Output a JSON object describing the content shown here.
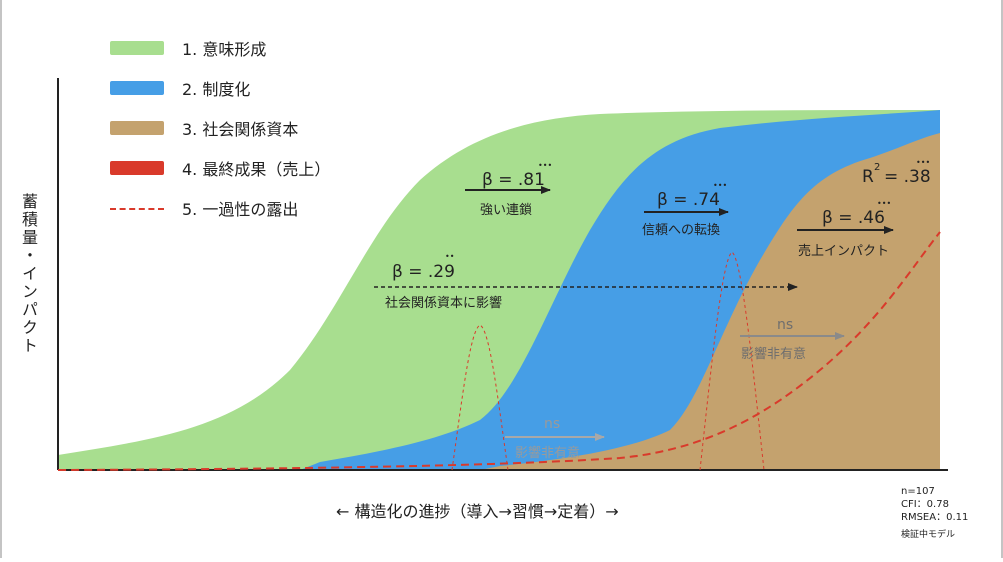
{
  "legend": {
    "items": [
      {
        "label": "1. 意味形成",
        "color": "#a8de8f",
        "style": "fill"
      },
      {
        "label": "2. 制度化",
        "color": "#469ee6",
        "style": "fill"
      },
      {
        "label": "3. 社会関係資本",
        "color": "#c4a26e",
        "style": "fill"
      },
      {
        "label": "4. 最終成果（売上）",
        "color": "#d93a2b",
        "style": "fill"
      },
      {
        "label": "5. 一過性の露出",
        "color": "#d93a2b",
        "style": "dashed"
      }
    ]
  },
  "axis": {
    "y_label": "蓄積量・インパクト",
    "x_label": "← 構造化の進捗（導入→習慣→定着）→"
  },
  "paths": {
    "beta81": {
      "beta": "β = .81",
      "sig": "•••",
      "label": "強い連鎖"
    },
    "beta74": {
      "beta": "β = .74",
      "sig": "•••",
      "label": "信頼への転換"
    },
    "beta46": {
      "beta": "β = .46",
      "sig": "•••",
      "label": "売上インパクト"
    },
    "beta29": {
      "beta": "β = .29",
      "sig": "••",
      "label": "社会関係資本に影響"
    },
    "ns_right": {
      "ns": "ns",
      "label": "影響非有意"
    },
    "ns_left": {
      "ns": "ns",
      "label": "影響非有意"
    }
  },
  "r2": {
    "label": "R",
    "sup": "2",
    "value": "= .38",
    "sig": "•••"
  },
  "stats": {
    "n": "n=107",
    "cfi": "CFI：0.78",
    "rmsea": "RMSEA：0.11",
    "note": "検証中モデル"
  }
}
